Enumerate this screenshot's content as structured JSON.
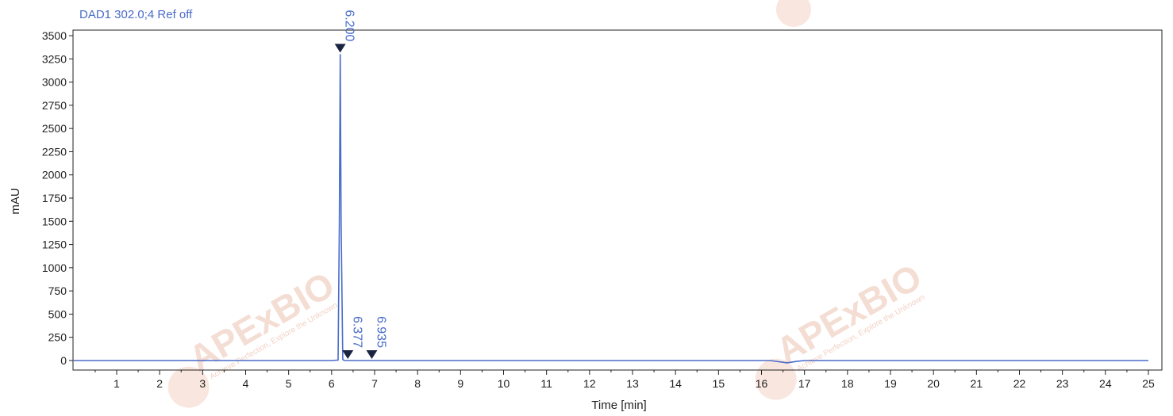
{
  "chart_data": {
    "type": "line",
    "signal_label": "DAD1 302.0;4 Ref off",
    "xlabel": "Time [min]",
    "ylabel": "mAU",
    "xlim": [
      0,
      25.3
    ],
    "ylim": [
      -60,
      3520
    ],
    "x_ticks": [
      1,
      2,
      3,
      4,
      5,
      6,
      7,
      8,
      9,
      10,
      11,
      12,
      13,
      14,
      15,
      16,
      17,
      18,
      19,
      20,
      21,
      22,
      23,
      24,
      25
    ],
    "y_ticks": [
      0,
      250,
      500,
      750,
      1000,
      1250,
      1500,
      1750,
      2000,
      2250,
      2500,
      2750,
      3000,
      3250,
      3500
    ],
    "grid": false,
    "colors": {
      "trace": "#4a6cc9",
      "marker": "#1a2340",
      "axis": "#222222"
    },
    "series": [
      {
        "x": [
          0,
          6.0,
          6.15,
          6.18,
          6.2,
          6.22,
          6.26,
          6.3,
          6.5,
          16.2,
          16.45,
          16.6,
          16.8,
          17.0,
          25.0
        ],
        "y": [
          0,
          0,
          5,
          1500,
          3300,
          1500,
          10,
          0,
          0,
          0,
          -15,
          -25,
          -10,
          0,
          0
        ]
      }
    ],
    "peaks": [
      {
        "time": 6.2,
        "label": "6.200",
        "height": 3300
      },
      {
        "time": 6.377,
        "label": "6.377",
        "height": 0
      },
      {
        "time": 6.935,
        "label": "6.935",
        "height": 0
      }
    ]
  },
  "watermark": {
    "brand": "APExBIO",
    "tagline": "Achieve Perfection, Explore the Unknown"
  }
}
